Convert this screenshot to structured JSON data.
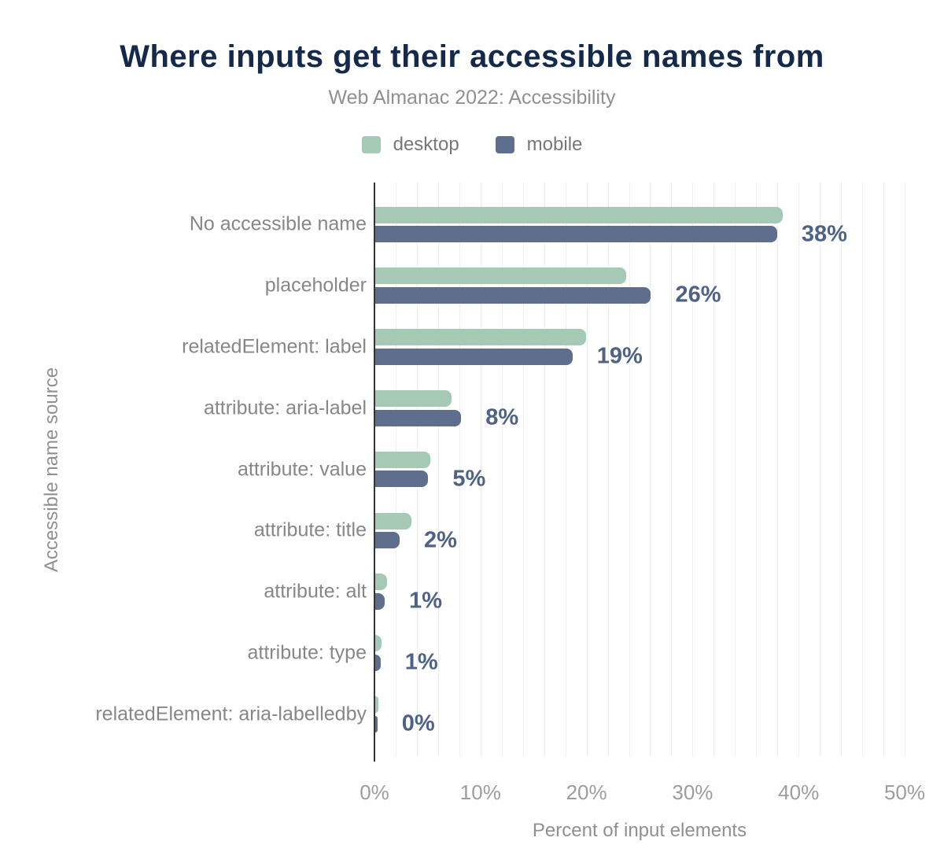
{
  "title": "Where inputs get their accessible names from",
  "subtitle": "Web Almanac 2022: Accessibility",
  "legend": [
    {
      "label": "desktop",
      "color": "#a6c9b6"
    },
    {
      "label": "mobile",
      "color": "#5e6e8c"
    }
  ],
  "colors": {
    "desktop_bar": "#a6c9b6",
    "mobile_bar": "#5e6e8c",
    "title_text": "#152a4b",
    "value_label_text": "#4d6285",
    "axis_line": "#333333",
    "gridline": "#efefef",
    "muted_text": "#8e9092"
  },
  "chart_data": {
    "type": "bar",
    "orientation": "horizontal",
    "title": "Where inputs get their accessible names from",
    "subtitle": "Web Almanac 2022: Accessibility",
    "xlabel": "Percent of input elements",
    "ylabel": "Accessible name source",
    "xlim": [
      0,
      50
    ],
    "x_ticks": [
      "0%",
      "10%",
      "20%",
      "30%",
      "40%",
      "50%"
    ],
    "grid": "vertical minor gridlines every 2%, on",
    "legend_position": "top-center",
    "categories": [
      "No accessible name",
      "placeholder",
      "relatedElement: label",
      "attribute: aria-label",
      "attribute: value",
      "attribute: title",
      "attribute: alt",
      "attribute: type",
      "relatedElement: aria-labelledby"
    ],
    "series": [
      {
        "name": "desktop",
        "values": [
          38.4,
          23.7,
          19.9,
          7.2,
          5.2,
          3.4,
          1.1,
          0.6,
          0.3
        ]
      },
      {
        "name": "mobile",
        "values": [
          37.9,
          26.0,
          18.6,
          8.1,
          5.0,
          2.3,
          0.9,
          0.5,
          0.2
        ]
      }
    ],
    "value_labels": [
      "38%",
      "26%",
      "19%",
      "8%",
      "5%",
      "2%",
      "1%",
      "1%",
      "0%"
    ]
  }
}
